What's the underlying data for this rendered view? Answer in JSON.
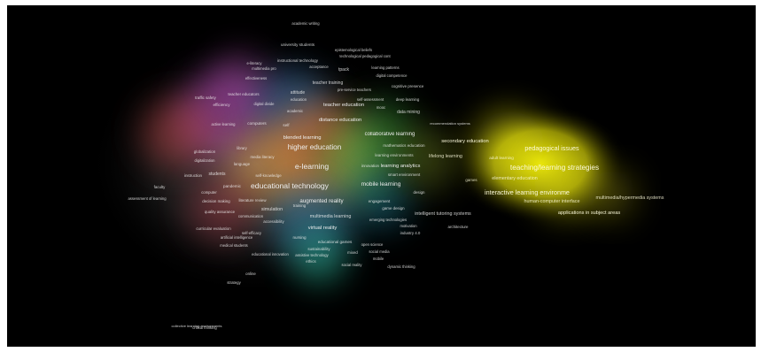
{
  "visualization": {
    "type": "keyword density map",
    "background": "#000000",
    "cluster_colors": [
      "#c8c81e",
      "#e03c3c",
      "#3cc83c",
      "#3c64dc",
      "#d25ad2",
      "#32c8c8",
      "#e69632",
      "#8c6ec8"
    ],
    "terms": [
      {
        "label": "academic writing"
      },
      {
        "label": "university students"
      },
      {
        "label": "epistemological beliefs"
      },
      {
        "label": "technological pedagogical cont"
      },
      {
        "label": "instructional technology"
      },
      {
        "label": "acceptance"
      },
      {
        "label": "e-literacy"
      },
      {
        "label": "multimedia pro"
      },
      {
        "label": "tpack"
      },
      {
        "label": "learning patterns"
      },
      {
        "label": "digital competence"
      },
      {
        "label": "effectiveness"
      },
      {
        "label": "teacher training"
      },
      {
        "label": "pre-service teachers"
      },
      {
        "label": "cognitive presence"
      },
      {
        "label": "teacher educators"
      },
      {
        "label": "attitude"
      },
      {
        "label": "traffic safety"
      },
      {
        "label": "education"
      },
      {
        "label": "self-assessment"
      },
      {
        "label": "deep learning"
      },
      {
        "label": "efficiency"
      },
      {
        "label": "digital divide"
      },
      {
        "label": "teacher education"
      },
      {
        "label": "mooc"
      },
      {
        "label": "academic"
      },
      {
        "label": "data mining"
      },
      {
        "label": "active learning"
      },
      {
        "label": "computers"
      },
      {
        "label": "self"
      },
      {
        "label": "distance education"
      },
      {
        "label": "recommendation systems"
      },
      {
        "label": "collaborative learning"
      },
      {
        "label": "interactive learning environments"
      },
      {
        "label": "blended learning"
      },
      {
        "label": "secondary education"
      },
      {
        "label": "library"
      },
      {
        "label": "mathematics education"
      },
      {
        "label": "higher education"
      },
      {
        "label": "learning environments"
      },
      {
        "label": "lifelong learning"
      },
      {
        "label": "pedagogical issues"
      },
      {
        "label": "adult learning"
      },
      {
        "label": "globalization"
      },
      {
        "label": "digitalization"
      },
      {
        "label": "e-learning"
      },
      {
        "label": "media literacy"
      },
      {
        "label": "language"
      },
      {
        "label": "learning analytics"
      },
      {
        "label": "teaching/learning strategies"
      },
      {
        "label": "innovation"
      },
      {
        "label": "students"
      },
      {
        "label": "self-knowledge"
      },
      {
        "label": "smart environment"
      },
      {
        "label": "games"
      },
      {
        "label": "elementary education"
      },
      {
        "label": "instruction"
      },
      {
        "label": "faculty"
      },
      {
        "label": "pandemic"
      },
      {
        "label": "educational technology"
      },
      {
        "label": "mobile learning"
      },
      {
        "label": "interactive learning environme"
      },
      {
        "label": "multimedia/hypermedia systems"
      },
      {
        "label": "computer"
      },
      {
        "label": "design"
      },
      {
        "label": "literature review"
      },
      {
        "label": "augmented reality"
      },
      {
        "label": "engagement"
      },
      {
        "label": "human-computer interface"
      },
      {
        "label": "decision making"
      },
      {
        "label": "simulation"
      },
      {
        "label": "training"
      },
      {
        "label": "game design"
      },
      {
        "label": "intelligent tutoring systems"
      },
      {
        "label": "applications in subject areas"
      },
      {
        "label": "quality assurance"
      },
      {
        "label": "multimedia learning"
      },
      {
        "label": "accessibility"
      },
      {
        "label": "virtual reality"
      },
      {
        "label": "architecture"
      },
      {
        "label": "industry 4.0"
      },
      {
        "label": "nursing"
      },
      {
        "label": "educational games"
      },
      {
        "label": "open science"
      },
      {
        "label": "artificial intelligence"
      },
      {
        "label": "sustainability"
      },
      {
        "label": "assistive technology"
      },
      {
        "label": "mixed"
      },
      {
        "label": "ethics"
      },
      {
        "label": "social media"
      },
      {
        "label": "mobile"
      },
      {
        "label": "social reality"
      },
      {
        "label": "dynamic thinking"
      },
      {
        "label": "medical students"
      },
      {
        "label": "educational innovation"
      },
      {
        "label": "strategy"
      },
      {
        "label": "online"
      },
      {
        "label": "critical thinking"
      },
      {
        "label": "emerging technologies"
      },
      {
        "label": "motivation"
      },
      {
        "label": "communication"
      },
      {
        "label": "curricular evaluation"
      },
      {
        "label": "assessment of learning"
      },
      {
        "label": "self-efficacy"
      },
      {
        "label": "collective learning environments"
      }
    ]
  }
}
